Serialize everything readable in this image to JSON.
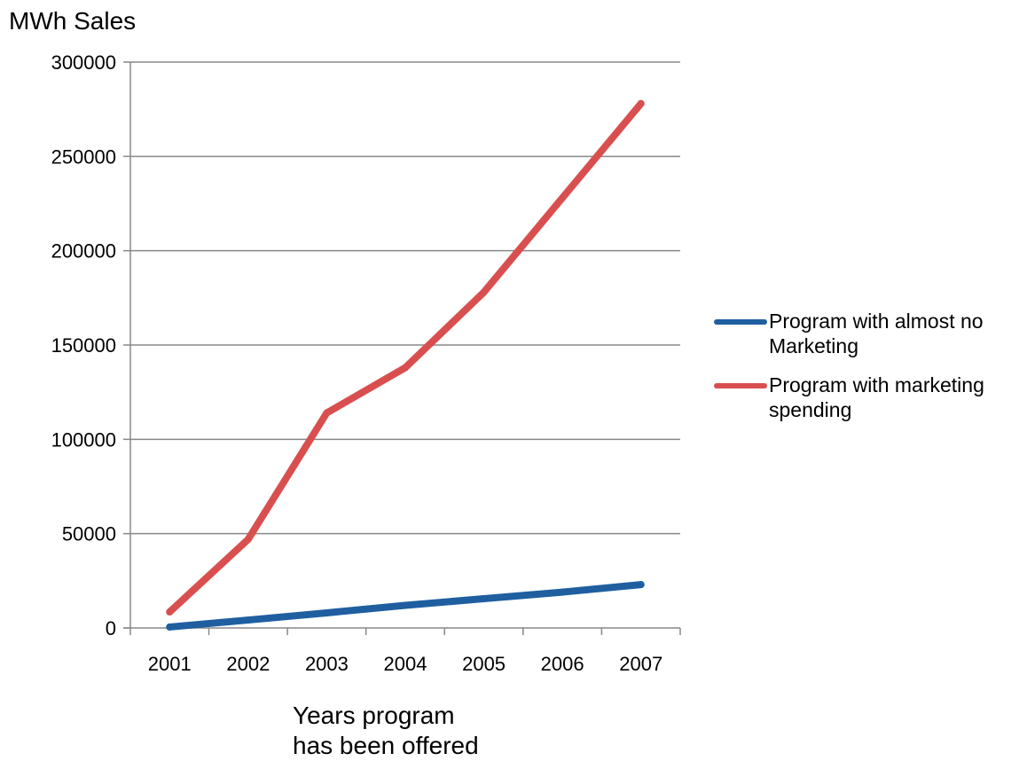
{
  "chart_data": {
    "type": "line",
    "ylabel": "MWh Sales",
    "xlabel": "Years program has been offered",
    "xlabel_lines": [
      "Years program",
      "has been offered"
    ],
    "categories": [
      "2001",
      "2002",
      "2003",
      "2004",
      "2005",
      "2006",
      "2007"
    ],
    "ylim": [
      0,
      300000
    ],
    "yticks": [
      0,
      50000,
      100000,
      150000,
      200000,
      250000,
      300000
    ],
    "ytick_labels": [
      "0",
      "50000",
      "100000",
      "150000",
      "200000",
      "250000",
      "300000"
    ],
    "grid": true,
    "legend_position": "right",
    "series": [
      {
        "name": "Program with almost no Marketing",
        "name_lines": [
          "Program with almost no",
          "Marketing"
        ],
        "color": "#1f5fa0",
        "values": [
          500,
          4200,
          8000,
          12000,
          15500,
          19000,
          23000
        ]
      },
      {
        "name": "Program with marketing spending",
        "name_lines": [
          "Program with marketing",
          "spending"
        ],
        "color": "#d94f4f",
        "values": [
          8500,
          47000,
          114000,
          138000,
          178000,
          228000,
          278000
        ]
      }
    ]
  }
}
